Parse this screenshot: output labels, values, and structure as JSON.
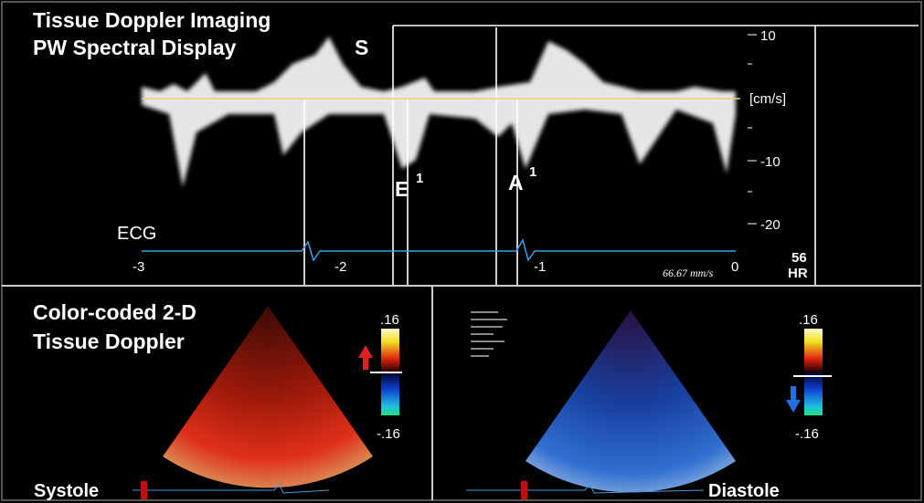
{
  "top_panel": {
    "title_line1": "Tissue Doppler Imaging",
    "title_line2": "PW Spectral Display",
    "wave_labels": {
      "s": "S",
      "e": "E",
      "e_sup": "1",
      "a": "A",
      "a_sup": "1"
    },
    "ecg": "ECG",
    "velocity_ticks": [
      "10",
      "[cm/s]",
      "-10",
      "-20"
    ],
    "time_ticks": [
      "-3",
      "-2",
      "-1",
      "0"
    ],
    "sweep_speed": "66.67 mm/s",
    "heart_rate": "56",
    "heart_rate_unit": "HR"
  },
  "bottom_left": {
    "title_line1": "Color-coded 2-D",
    "title_line2": "Tissue Doppler",
    "scale_max": ".16",
    "scale_min": "-.16",
    "phase": "Systole"
  },
  "bottom_right": {
    "scale_max": ".16",
    "scale_min": "-.16",
    "phase": "Diastole"
  }
}
